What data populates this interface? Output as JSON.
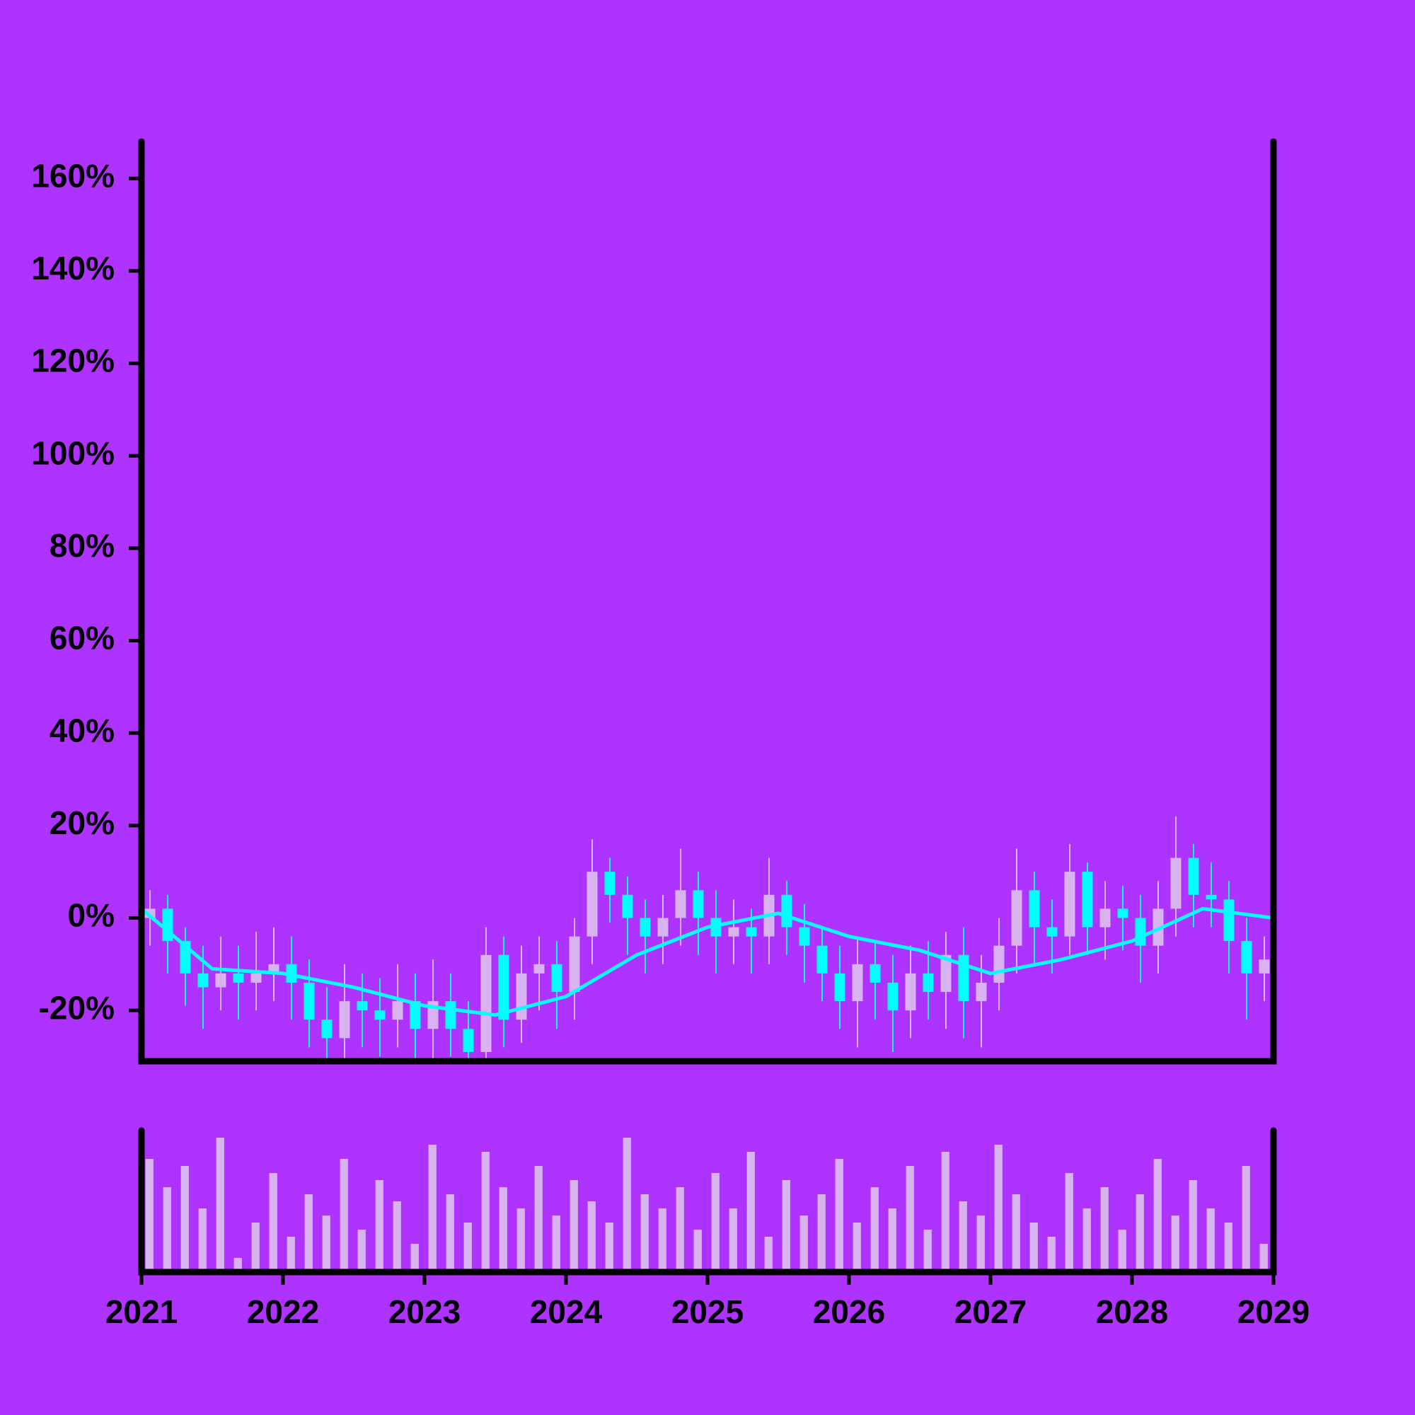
{
  "chart_data": {
    "type": "candlestick",
    "x": [
      2021.0,
      2021.125,
      2021.25,
      2021.375,
      2021.5,
      2021.625,
      2021.75,
      2021.875,
      2022.0,
      2022.125,
      2022.25,
      2022.375,
      2022.5,
      2022.625,
      2022.75,
      2022.875,
      2023.0,
      2023.125,
      2023.25,
      2023.375,
      2023.5,
      2023.625,
      2023.75,
      2023.875,
      2024.0,
      2024.125,
      2024.25,
      2024.375,
      2024.5,
      2024.625,
      2024.75,
      2024.875,
      2025.0,
      2025.125,
      2025.25,
      2025.375,
      2025.5,
      2025.625,
      2025.75,
      2025.875,
      2026.0,
      2026.125,
      2026.25,
      2026.375,
      2026.5,
      2026.625,
      2026.75,
      2026.875,
      2027.0,
      2027.125,
      2027.25,
      2027.375,
      2027.5,
      2027.625,
      2027.75,
      2027.875,
      2028.0,
      2028.125,
      2028.25,
      2028.375,
      2028.5,
      2028.625,
      2028.75,
      2028.875
    ],
    "open": [
      0,
      2,
      -5,
      -12,
      -15,
      -12,
      -14,
      -12,
      -10,
      -14,
      -22,
      -26,
      -18,
      -20,
      -22,
      -18,
      -24,
      -18,
      -24,
      -29,
      -8,
      -22,
      -12,
      -10,
      -16,
      -4,
      10,
      5,
      0,
      -4,
      0,
      6,
      0,
      -4,
      -2,
      -4,
      5,
      -2,
      -6,
      -12,
      -18,
      -10,
      -14,
      -20,
      -12,
      -16,
      -8,
      -18,
      -14,
      -6,
      6,
      -2,
      -4,
      10,
      -2,
      2,
      0,
      -6,
      2,
      13,
      5,
      4,
      -5,
      -12
    ],
    "high": [
      6,
      5,
      -2,
      -6,
      -4,
      -6,
      -3,
      -2,
      -4,
      -9,
      -15,
      -10,
      -12,
      -13,
      -10,
      -12,
      -9,
      -12,
      -18,
      -2,
      -4,
      -6,
      -4,
      -5,
      0,
      17,
      13,
      9,
      4,
      5,
      15,
      10,
      6,
      4,
      2,
      13,
      8,
      3,
      -2,
      -6,
      -4,
      -5,
      -8,
      -6,
      -5,
      -3,
      -2,
      -8,
      0,
      15,
      10,
      4,
      16,
      12,
      8,
      7,
      5,
      8,
      22,
      16,
      12,
      8,
      0,
      -4
    ],
    "low": [
      -6,
      -12,
      -19,
      -24,
      -20,
      -22,
      -20,
      -18,
      -22,
      -28,
      -31,
      -31,
      -28,
      -30,
      -28,
      -31,
      -31,
      -30,
      -31,
      -31,
      -28,
      -27,
      -20,
      -24,
      -22,
      -10,
      -1,
      -8,
      -12,
      -10,
      -6,
      -8,
      -12,
      -10,
      -12,
      -10,
      -8,
      -14,
      -18,
      -24,
      -28,
      -22,
      -29,
      -26,
      -22,
      -24,
      -26,
      -28,
      -20,
      -12,
      -10,
      -12,
      -8,
      -8,
      -9,
      -7,
      -14,
      -12,
      -4,
      -2,
      -2,
      -12,
      -22,
      -18
    ],
    "close": [
      2,
      -5,
      -12,
      -15,
      -12,
      -14,
      -12,
      -10,
      -14,
      -22,
      -26,
      -18,
      -20,
      -22,
      -18,
      -24,
      -18,
      -24,
      -29,
      -8,
      -22,
      -12,
      -10,
      -16,
      -4,
      10,
      5,
      0,
      -4,
      0,
      6,
      0,
      -4,
      -2,
      -4,
      5,
      -2,
      -6,
      -12,
      -18,
      -10,
      -14,
      -20,
      -12,
      -16,
      -8,
      -18,
      -14,
      -6,
      6,
      -2,
      -4,
      10,
      -2,
      2,
      0,
      -6,
      2,
      13,
      5,
      4,
      -5,
      -12,
      -9
    ],
    "up_color": "#d9b3f0",
    "down_color": "#00ffff",
    "average": {
      "color": "#00ffff",
      "x": [
        2021.0,
        2021.5,
        2022.0,
        2022.5,
        2023.0,
        2023.5,
        2024.0,
        2024.5,
        2025.0,
        2025.5,
        2026.0,
        2026.5,
        2027.0,
        2027.5,
        2028.0,
        2028.5,
        2029.0
      ],
      "values": [
        2,
        -11,
        -12,
        -15,
        -19,
        -21,
        -17,
        -8,
        -2,
        1,
        -4,
        -7,
        -12,
        -9,
        -5,
        2,
        0
      ]
    },
    "volume": {
      "color": "#d9b3f0",
      "values": [
        80,
        60,
        75,
        45,
        95,
        10,
        35,
        70,
        25,
        55,
        40,
        80,
        30,
        65,
        50,
        20,
        90,
        55,
        35,
        85,
        60,
        45,
        75,
        40,
        65,
        50,
        35,
        95,
        55,
        45,
        60,
        30,
        70,
        45,
        85,
        25,
        65,
        40,
        55,
        80,
        35,
        60,
        45,
        75,
        30,
        85,
        50,
        40,
        90,
        55,
        35,
        25,
        70,
        45,
        60,
        30,
        55,
        80,
        40,
        65,
        45,
        35,
        75,
        20
      ],
      "ylim": [
        0,
        100
      ]
    },
    "xlim": [
      2021,
      2029
    ],
    "xticks": [
      2021,
      2022,
      2023,
      2024,
      2025,
      2026,
      2027,
      2028,
      2029
    ],
    "ylim": [
      -31,
      168
    ],
    "yticks": [
      {
        "value": -20,
        "label": "-20%"
      },
      {
        "value": 0,
        "label": "0%"
      },
      {
        "value": 20,
        "label": "20%"
      },
      {
        "value": 40,
        "label": "40%"
      },
      {
        "value": 60,
        "label": "60%"
      },
      {
        "value": 80,
        "label": "80%"
      },
      {
        "value": 100,
        "label": "100%"
      },
      {
        "value": 120,
        "label": "120%"
      },
      {
        "value": 140,
        "label": "140%"
      },
      {
        "value": 160,
        "label": "160%"
      }
    ]
  }
}
